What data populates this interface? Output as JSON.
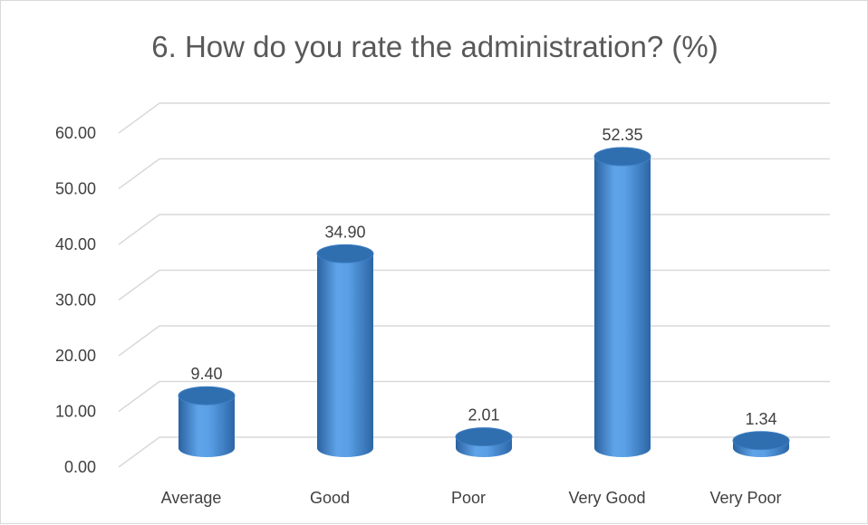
{
  "chart_data": {
    "type": "bar",
    "title": "6. How do you rate the administration? (%)",
    "categories": [
      "Average",
      "Good",
      "Poor",
      "Very Good",
      "Very Poor"
    ],
    "values": [
      9.4,
      34.9,
      2.01,
      52.35,
      1.34
    ],
    "value_labels": [
      "9.40",
      "34.90",
      "2.01",
      "52.35",
      "1.34"
    ],
    "ylim": [
      0,
      60
    ],
    "yticks": [
      "0.00",
      "10.00",
      "20.00",
      "30.00",
      "40.00",
      "50.00",
      "60.00"
    ],
    "grid": true,
    "bar_style": "3d-cylinder",
    "colors": {
      "bar": "#4a90d9",
      "bar_dark": "#2e6aa8",
      "bar_top": "#2f6fb0",
      "grid": "#d9d9d9"
    }
  }
}
